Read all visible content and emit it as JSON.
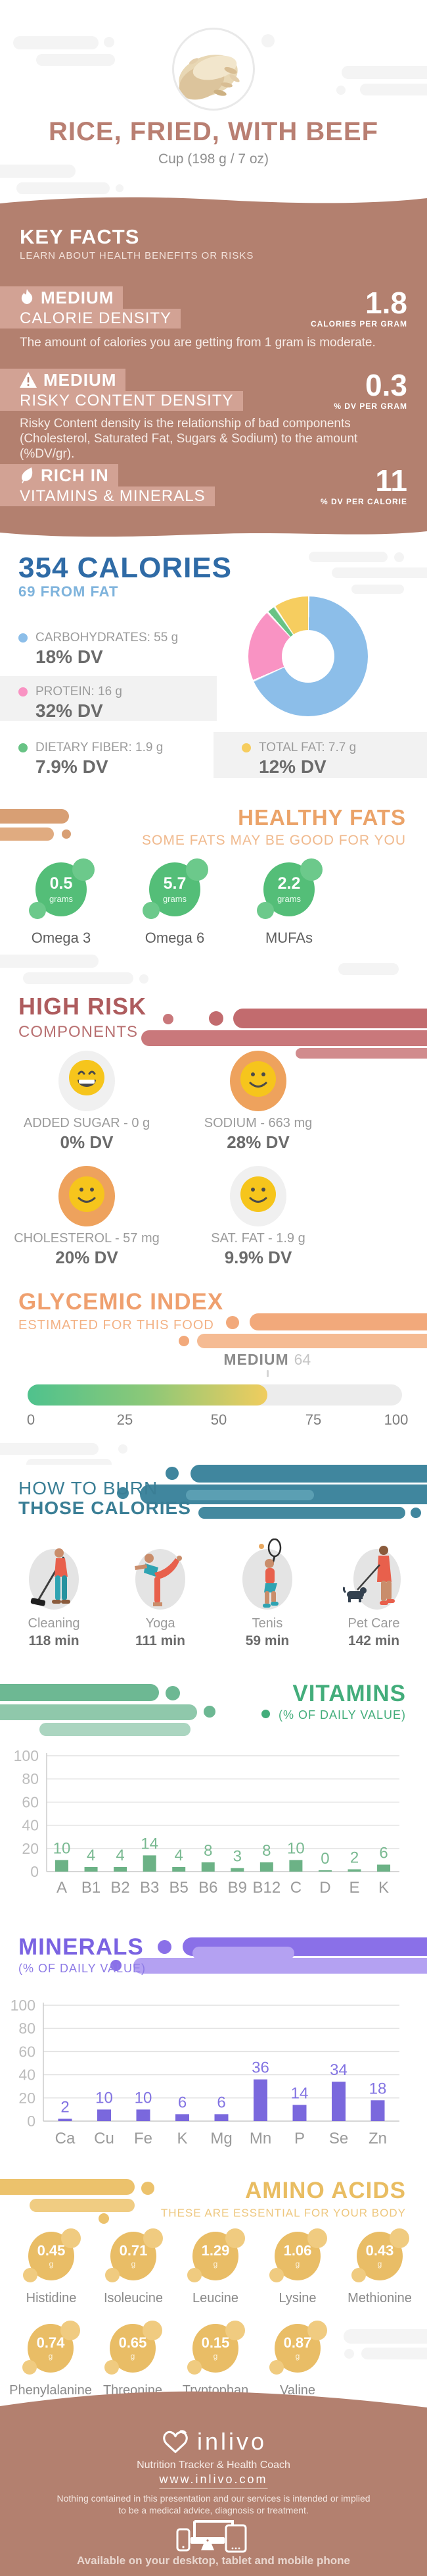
{
  "header": {
    "title": "RICE, FRIED, WITH BEEF",
    "subtitle": "Cup (198 g / 7 oz)"
  },
  "key_facts": {
    "title": "KEY FACTS",
    "subtitle": "LEARN ABOUT HEALTH BENEFITS OR RISKS",
    "facts": [
      {
        "level": "MEDIUM",
        "name": "CALORIE DENSITY",
        "value": "1.8",
        "unit": "CALORIES PER GRAM",
        "icon": "flame-icon",
        "description": "The amount of calories you are getting from 1 gram is moderate."
      },
      {
        "level": "MEDIUM",
        "name": "RISKY CONTENT DENSITY",
        "value": "0.3",
        "unit": "% DV PER GRAM",
        "icon": "warning-icon",
        "description": "Risky Content density is the relationship of bad components (Cholesterol, Saturated Fat, Sugars & Sodium) to the amount (%DV/gr)."
      },
      {
        "level": "RICH IN",
        "name": "VITAMINS & MINERALS",
        "value": "11",
        "unit": "% DV PER CALORIE",
        "icon": "leaf-icon",
        "description": ""
      }
    ]
  },
  "calories": {
    "title": "354 CALORIES",
    "subtitle": "69 FROM FAT",
    "legend": [
      {
        "label": "CARBOHYDRATES: 55 g",
        "dv": "18% DV",
        "color": "#8cbee9"
      },
      {
        "label": "PROTEIN: 16 g",
        "dv": "32% DV",
        "color": "#f993c3"
      },
      {
        "label": "DIETARY FIBER: 1.9 g",
        "dv": "7.9% DV",
        "color": "#68c385"
      },
      {
        "label": "TOTAL FAT: 7.7 g",
        "dv": "12% DV",
        "color": "#f6cd5f"
      }
    ],
    "chart_data": {
      "type": "pie",
      "labels": [
        "Carbohydrates",
        "Protein",
        "Dietary Fiber",
        "Total Fat"
      ],
      "values_grams": [
        55,
        16,
        1.9,
        7.7
      ],
      "colors": [
        "#8cbee9",
        "#f993c3",
        "#68c385",
        "#f6cd5f"
      ],
      "donut_hole_ratio": 0.44
    }
  },
  "healthy_fats": {
    "title": "HEALTHY FATS",
    "subtitle": "SOME FATS MAY BE GOOD FOR YOU",
    "items": [
      {
        "value": "0.5",
        "unit": "grams",
        "label": "Omega 3"
      },
      {
        "value": "5.7",
        "unit": "grams",
        "label": "Omega 6"
      },
      {
        "value": "2.2",
        "unit": "grams",
        "label": "MUFAs"
      }
    ]
  },
  "high_risk": {
    "title": "HIGH RISK",
    "subtitle": "COMPONENTS",
    "items": [
      {
        "label": "ADDED SUGAR - 0 g",
        "dv": "0% DV",
        "mood": "grin",
        "bg_color": "#f0f0f0"
      },
      {
        "label": "SODIUM - 663 mg",
        "dv": "28% DV",
        "mood": "smile",
        "bg_color": "#eea25d"
      },
      {
        "label": "CHOLESTEROL - 57 mg",
        "dv": "20% DV",
        "mood": "smile",
        "bg_color": "#eea25d"
      },
      {
        "label": "SAT. FAT - 1.9 g",
        "dv": "9.9% DV",
        "mood": "smile",
        "bg_color": "#f0f0f0"
      }
    ]
  },
  "glycemic_index": {
    "title": "GLYCEMIC INDEX",
    "subtitle": "ESTIMATED FOR THIS FOOD",
    "level": "MEDIUM",
    "value": 64,
    "scale_max": 100,
    "scale_labels": [
      "0",
      "25",
      "50",
      "75",
      "100"
    ],
    "fill_colors": [
      "#4fc28d",
      "#f0cc5e"
    ],
    "track_color": "#ececec"
  },
  "burn": {
    "title_line1": "HOW TO BURN",
    "title_line2": "THOSE CALORIES",
    "activities": [
      {
        "label": "Cleaning",
        "minutes": "118 min",
        "icon": "cleaning-icon"
      },
      {
        "label": "Yoga",
        "minutes": "111 min",
        "icon": "yoga-icon"
      },
      {
        "label": "Tenis",
        "minutes": "59 min",
        "icon": "tennis-icon"
      },
      {
        "label": "Pet Care",
        "minutes": "142 min",
        "icon": "pet-care-icon"
      }
    ]
  },
  "vitamins": {
    "title": "VITAMINS",
    "subtitle": "(% OF DAILY VALUE)",
    "chart_data": {
      "type": "bar",
      "title": "Vitamins (% of daily value)",
      "categories": [
        "A",
        "B1",
        "B2",
        "B3",
        "B5",
        "B6",
        "B9",
        "B12",
        "C",
        "D",
        "E",
        "K"
      ],
      "values": [
        10,
        4,
        4,
        14,
        4,
        8,
        3,
        8,
        10,
        0,
        2,
        6
      ],
      "ylim": [
        0,
        100
      ],
      "yticks": [
        0,
        20,
        40,
        60,
        80,
        100
      ],
      "grid": true,
      "bar_color": "#6cb286",
      "value_label_color": "#79b991",
      "axis_label_color": "#bdbdbd",
      "category_color": "#9b9b9b"
    }
  },
  "minerals": {
    "title": "MINERALS",
    "subtitle": "(% OF DAILY VALUE)",
    "chart_data": {
      "type": "bar",
      "title": "Minerals (% of daily value)",
      "categories": [
        "Ca",
        "Cu",
        "Fe",
        "K",
        "Mg",
        "Mn",
        "P",
        "Se",
        "Zn"
      ],
      "values": [
        2,
        10,
        10,
        6,
        6,
        36,
        14,
        34,
        18
      ],
      "ylim": [
        0,
        100
      ],
      "yticks": [
        0,
        20,
        40,
        60,
        80,
        100
      ],
      "grid": true,
      "bar_color": "#7a68dd",
      "value_label_color": "#8273e2",
      "axis_label_color": "#bdbdbd",
      "category_color": "#9b9b9b"
    }
  },
  "amino_acids": {
    "title": "AMINO ACIDS",
    "subtitle": "THESE ARE ESSENTIAL FOR YOUR BODY",
    "items": [
      {
        "value": "0.45",
        "unit": "g",
        "label": "Histidine"
      },
      {
        "value": "0.71",
        "unit": "g",
        "label": "Isoleucine"
      },
      {
        "value": "1.29",
        "unit": "g",
        "label": "Leucine"
      },
      {
        "value": "1.06",
        "unit": "g",
        "label": "Lysine"
      },
      {
        "value": "0.43",
        "unit": "g",
        "label": "Methionine"
      },
      {
        "value": "0.74",
        "unit": "g",
        "label": "Phenylalanine"
      },
      {
        "value": "0.65",
        "unit": "g",
        "label": "Threonine"
      },
      {
        "value": "0.15",
        "unit": "g",
        "label": "Tryptophan"
      },
      {
        "value": "0.87",
        "unit": "g",
        "label": "Valine"
      }
    ]
  },
  "footer": {
    "brand": "inlivo",
    "tagline": "Nutrition Tracker & Health Coach",
    "url": "www.inlivo.com",
    "disclaimer": "Nothing contained in this presentation and our services is intended or implied to be a medical advice, diagnosis or treatment.",
    "availability": "Available on your desktop, tablet and mobile phone"
  },
  "theme": {
    "mauve": "#b3806f",
    "chip_pink": "#d2a294",
    "blue_heading": "#2f6ba6",
    "orange_heading": "#eba369",
    "rose_heading": "#ae5c5e",
    "teal_heading": "#3a7e95",
    "green_heading": "#43ad7b",
    "purple_heading": "#7a63e2",
    "gold_heading": "#e9bd62"
  }
}
